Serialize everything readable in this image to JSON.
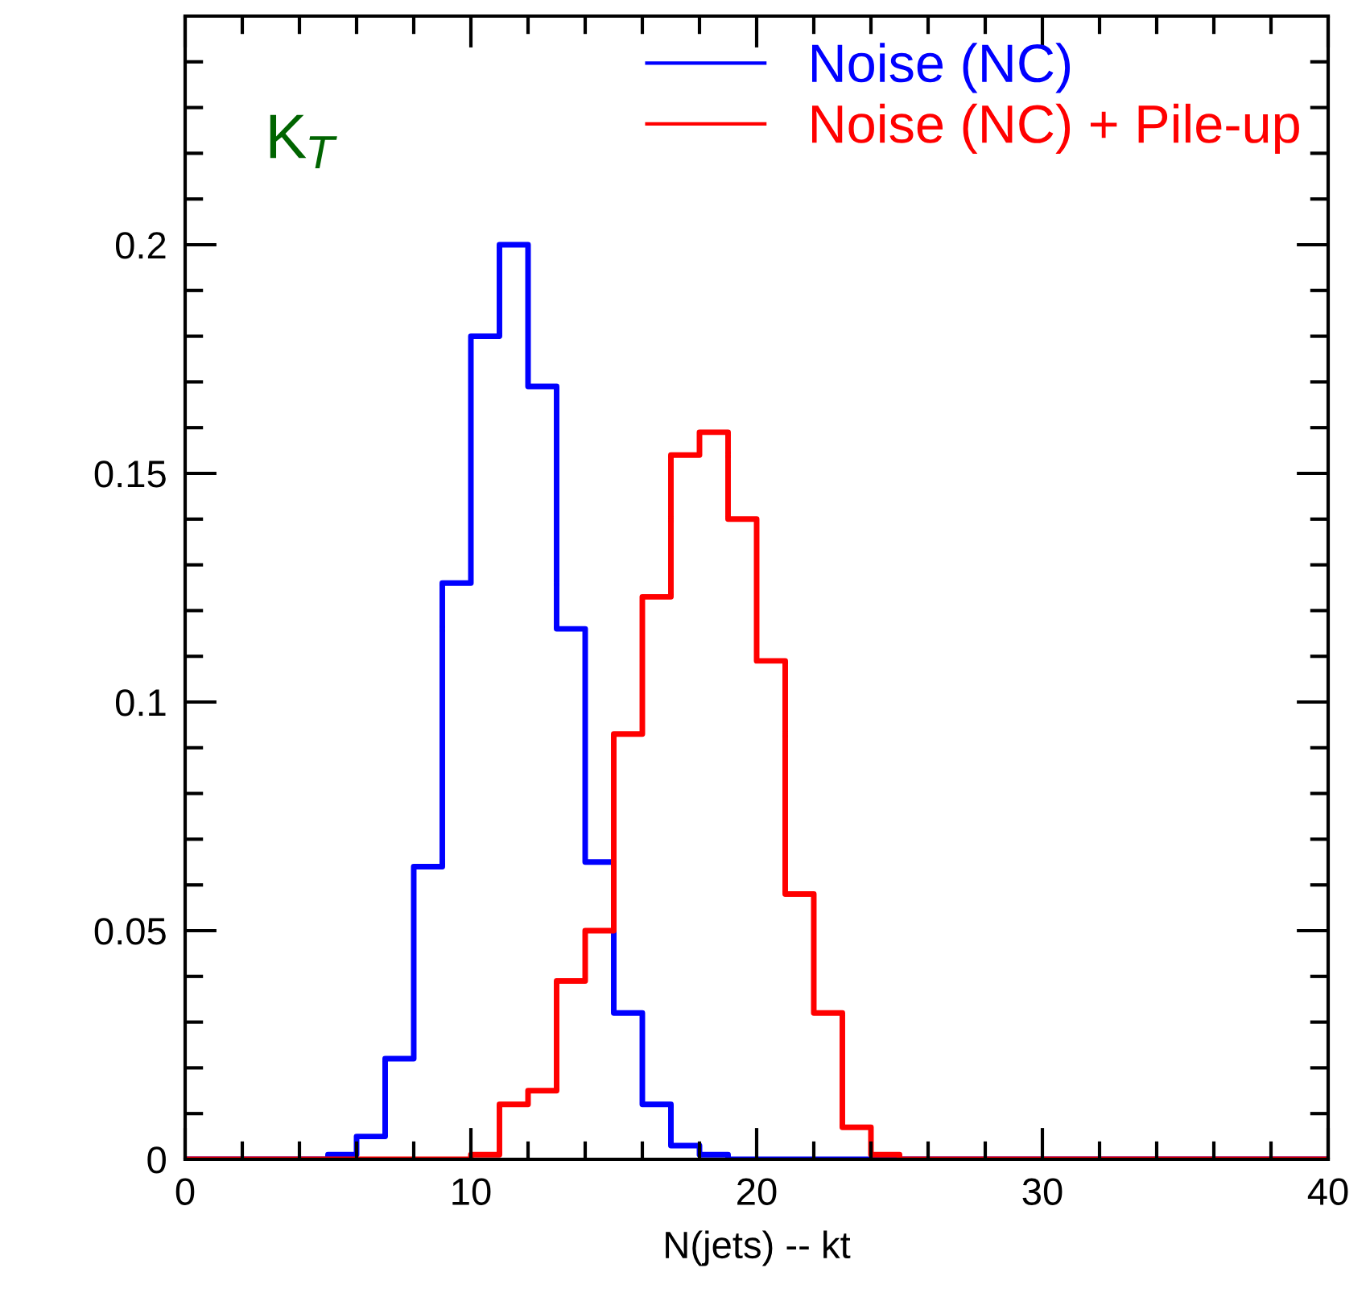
{
  "chart_data": {
    "type": "histogram",
    "xlabel": "N(jets) -- kt",
    "annotations": [
      "K$_{T}$"
    ],
    "bins": [
      0,
      1,
      2,
      3,
      4,
      5,
      6,
      7,
      8,
      9,
      10,
      11,
      12,
      13,
      14,
      15,
      16,
      17,
      18,
      19,
      20,
      21,
      22,
      23,
      24,
      25,
      26,
      27,
      28,
      29,
      30,
      31,
      32,
      33,
      34,
      35,
      36,
      37,
      38,
      39,
      40
    ],
    "series": [
      {
        "name": "Noise (NC)",
        "color": "#0000ff",
        "values": [
          0,
          0,
          0,
          0,
          0,
          0.001,
          0.005,
          0.022,
          0.064,
          0.126,
          0.18,
          0.2,
          0.169,
          0.116,
          0.065,
          0.032,
          0.012,
          0.003,
          0.001,
          0,
          0,
          0,
          0,
          0,
          0,
          0,
          0,
          0,
          0,
          0,
          0,
          0,
          0,
          0,
          0,
          0,
          0,
          0,
          0,
          0
        ]
      },
      {
        "name": "Noise (NC) + Pile-up",
        "color": "#ff0000",
        "values": [
          0,
          0,
          0,
          0,
          0,
          0,
          0,
          0,
          0,
          0,
          0.001,
          0.012,
          0.015,
          0.039,
          0.05,
          0.093,
          0.123,
          0.154,
          0.159,
          0.14,
          0.109,
          0.058,
          0.032,
          0.007,
          0.001,
          0,
          0,
          0,
          0,
          0,
          0,
          0,
          0,
          0,
          0,
          0,
          0,
          0,
          0,
          0
        ]
      }
    ],
    "xlim": [
      0,
      40
    ],
    "ylim": [
      0,
      0.25
    ],
    "xticks": [
      0,
      {
        "value": 2,
        "label": null
      },
      {
        "value": 4,
        "label": null
      },
      {
        "value": 6,
        "label": null
      },
      {
        "value": 8,
        "label": null
      },
      10,
      {
        "value": 12,
        "label": null
      },
      {
        "value": 14,
        "label": null
      },
      {
        "value": 16,
        "label": null
      },
      {
        "value": 18,
        "label": null
      },
      20,
      {
        "value": 22,
        "label": null
      },
      {
        "value": 24,
        "label": null
      },
      {
        "value": 26,
        "label": null
      },
      {
        "value": 28,
        "label": null
      },
      30,
      {
        "value": 32,
        "label": null
      },
      {
        "value": 34,
        "label": null
      },
      {
        "value": 36,
        "label": null
      },
      {
        "value": 38,
        "label": null
      },
      40
    ],
    "yticks": [
      0,
      {
        "value": 0.01,
        "label": null
      },
      {
        "value": 0.02,
        "label": null
      },
      {
        "value": 0.03,
        "label": null
      },
      {
        "value": 0.04,
        "label": null
      },
      0.05,
      {
        "value": 0.06,
        "label": null
      },
      {
        "value": 0.07,
        "label": null
      },
      {
        "value": 0.08,
        "label": null
      },
      {
        "value": 0.09,
        "label": null
      },
      0.1,
      {
        "value": 0.11,
        "label": null
      },
      {
        "value": 0.12,
        "label": null
      },
      {
        "value": 0.13,
        "label": null
      },
      {
        "value": 0.14,
        "label": null
      },
      0.15,
      {
        "value": 0.16,
        "label": null
      },
      {
        "value": 0.17,
        "label": null
      },
      {
        "value": 0.18,
        "label": null
      },
      {
        "value": 0.19,
        "label": null
      },
      0.2,
      {
        "value": 0.21,
        "label": null
      },
      {
        "value": 0.22,
        "label": null
      },
      {
        "value": 0.23,
        "label": null
      },
      {
        "value": 0.24,
        "label": null
      }
    ],
    "legend": "top right",
    "grid": false
  }
}
